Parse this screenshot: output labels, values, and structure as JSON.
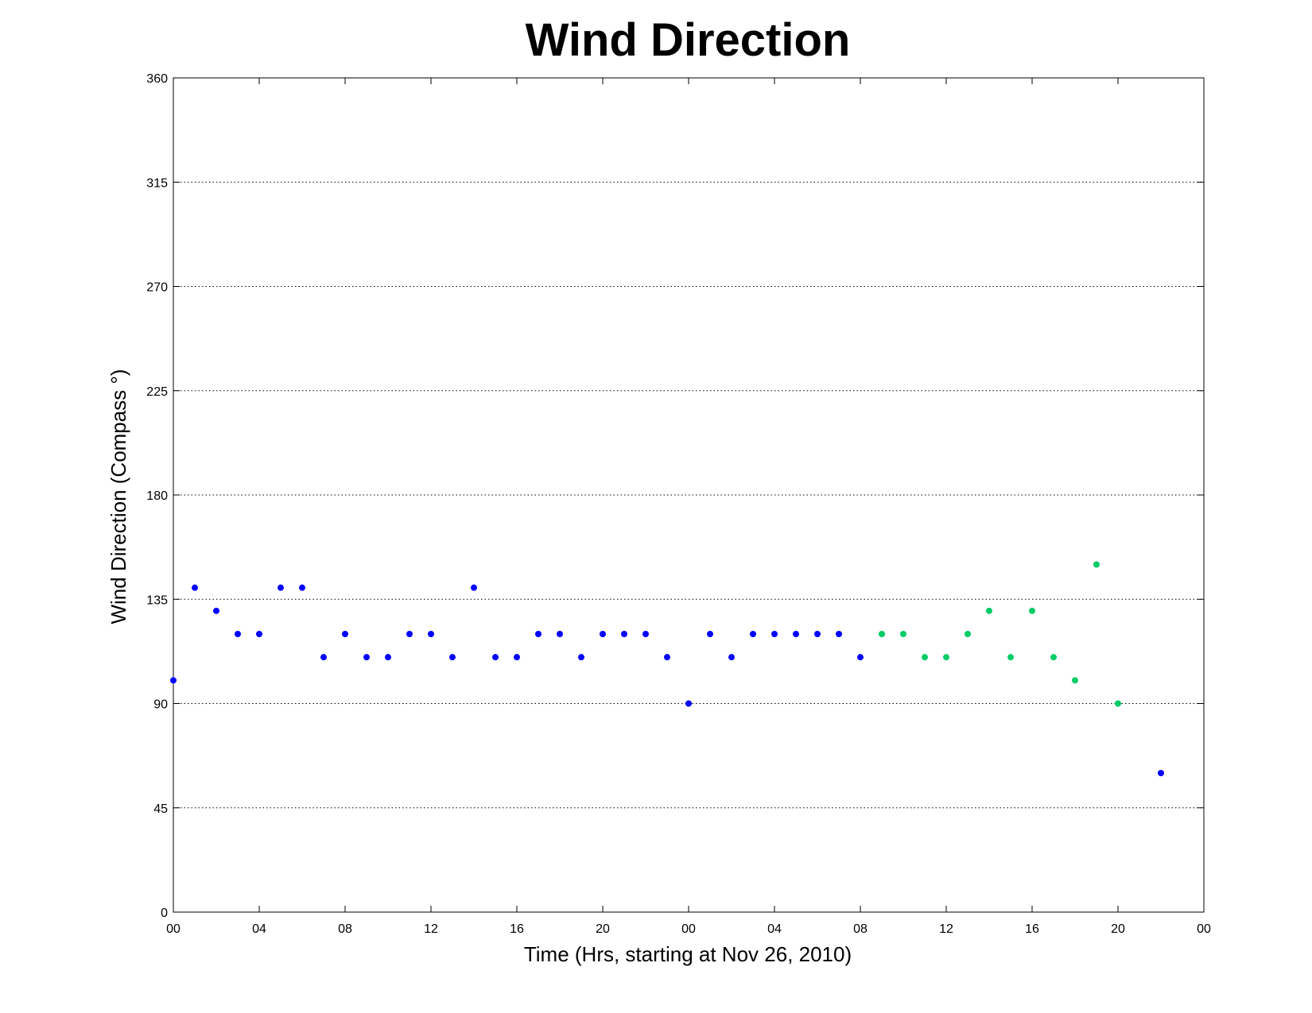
{
  "chart_data": {
    "type": "scatter",
    "title": "Wind Direction",
    "xlabel": "Time (Hrs, starting at Nov 26, 2010)",
    "ylabel": "Wind Direction (Compass  °)",
    "xlim": [
      0,
      48
    ],
    "ylim": [
      0,
      360
    ],
    "x_ticks": [
      0,
      4,
      8,
      12,
      16,
      20,
      24,
      28,
      32,
      36,
      40,
      44,
      48
    ],
    "x_tick_labels": [
      "00",
      "04",
      "08",
      "12",
      "16",
      "20",
      "00",
      "04",
      "08",
      "12",
      "16",
      "20",
      "00"
    ],
    "y_ticks": [
      0,
      45,
      90,
      135,
      180,
      225,
      270,
      315,
      360
    ],
    "y_tick_labels": [
      "0",
      "45",
      "90",
      "135",
      "180",
      "225",
      "270",
      "315",
      "360"
    ],
    "grid": "horizontal dotted",
    "series": [
      {
        "color": "#0000ff",
        "points": [
          [
            0,
            100
          ],
          [
            1,
            140
          ],
          [
            2,
            130
          ],
          [
            3,
            120
          ],
          [
            4,
            120
          ],
          [
            5,
            140
          ],
          [
            6,
            140
          ],
          [
            7,
            110
          ],
          [
            8,
            120
          ],
          [
            9,
            110
          ],
          [
            10,
            110
          ],
          [
            11,
            120
          ],
          [
            12,
            120
          ],
          [
            13,
            110
          ],
          [
            14,
            140
          ],
          [
            15,
            110
          ],
          [
            16,
            110
          ],
          [
            17,
            120
          ],
          [
            18,
            120
          ],
          [
            19,
            110
          ],
          [
            20,
            120
          ],
          [
            21,
            120
          ],
          [
            22,
            120
          ],
          [
            23,
            110
          ],
          [
            24,
            90
          ],
          [
            25,
            120
          ],
          [
            26,
            110
          ],
          [
            27,
            120
          ],
          [
            28,
            120
          ],
          [
            29,
            120
          ],
          [
            30,
            120
          ],
          [
            31,
            120
          ],
          [
            32,
            110
          ],
          [
            46,
            60
          ]
        ]
      },
      {
        "color": "#00cc66",
        "points": [
          [
            33,
            120
          ],
          [
            34,
            120
          ],
          [
            35,
            110
          ],
          [
            36,
            110
          ],
          [
            37,
            120
          ],
          [
            38,
            130
          ],
          [
            39,
            110
          ],
          [
            40,
            130
          ],
          [
            41,
            110
          ],
          [
            42,
            100
          ],
          [
            43,
            150
          ],
          [
            44,
            90
          ]
        ]
      }
    ]
  }
}
